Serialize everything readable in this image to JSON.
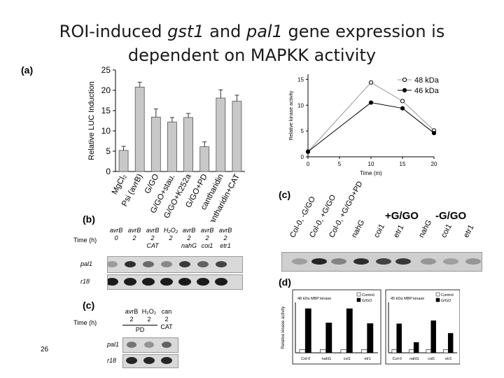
{
  "title": {
    "line1_pre": "ROI-induced ",
    "line1_g1": "gst1",
    "line1_mid": " and ",
    "line1_g2": "pal1",
    "line1_post": " gene expression is",
    "line2": "dependent on MAPKK activity"
  },
  "page_number": "26",
  "panel_labels": {
    "a": "(a)",
    "b": "(b)",
    "c_top": "(c)",
    "c_bottom": "(c)",
    "d": "(d)"
  },
  "chart_data": [
    {
      "type": "bar",
      "ylabel": "Relative LUC Induction",
      "ylim": [
        0,
        25
      ],
      "yticks": [
        0,
        5,
        10,
        15,
        20,
        25
      ],
      "categories": [
        "MgCl2",
        "Psi (avrB)",
        "G/GO",
        "G/GO+stau.",
        "G/GO+K252a",
        "G/GO+PD",
        "cantharidin",
        "cantharidin+CAT"
      ],
      "category_labels": [
        "MgCl₂",
        "Psi (avrB)",
        "G/GO",
        "G/GO+stau.",
        "G/GO+K252a",
        "G/GO+PD",
        "cantharidin",
        "antharidin+CAT"
      ],
      "values": [
        5.2,
        20.8,
        13.4,
        12.2,
        13.3,
        6.1,
        18.1,
        17.3
      ],
      "errors": [
        1.0,
        1.2,
        2.0,
        1.1,
        1.0,
        1.2,
        2.0,
        1.5
      ]
    },
    {
      "type": "line",
      "xlabel": "Time (m)",
      "ylabel": "Relative kinase activity",
      "x": [
        0,
        10,
        15,
        20
      ],
      "xticks": [
        0,
        5,
        10,
        15,
        20
      ],
      "yticks": [
        0,
        5,
        10,
        15
      ],
      "xlim": [
        0,
        20
      ],
      "ylim": [
        0,
        16
      ],
      "legend_position": "top-right",
      "series": [
        {
          "name": "48 kDa",
          "marker": "open",
          "values": [
            1,
            14.4,
            10.8,
            5.1
          ]
        },
        {
          "name": "46 kDa",
          "marker": "filled",
          "values": [
            1,
            10.5,
            9.4,
            4.6
          ]
        }
      ]
    },
    {
      "type": "bar",
      "subtitle": "48 kDa MBP kinase",
      "ylabel": "Relative kinase activity",
      "categories": [
        "Col-0",
        "nahG",
        "col1",
        "etr1"
      ],
      "ylim": [
        0,
        16
      ],
      "series": [
        {
          "name": "Control",
          "values": [
            1,
            1,
            1,
            1
          ]
        },
        {
          "name": "G/GO",
          "values": [
            14,
            9.5,
            14,
            9.3
          ]
        }
      ]
    },
    {
      "type": "bar",
      "subtitle": "45 kDa MBP kinase",
      "categories": [
        "Col-0",
        "nahG",
        "col1",
        "etr1"
      ],
      "ylim": [
        0,
        16
      ],
      "series": [
        {
          "name": "Control",
          "values": [
            1,
            1,
            1,
            1
          ]
        },
        {
          "name": "G/GO",
          "values": [
            9.2,
            3.3,
            10.2,
            6.2
          ]
        }
      ]
    }
  ],
  "blot_b": {
    "headers": [
      {
        "line1": "avrB",
        "line2": "0"
      },
      {
        "line1": "avrB",
        "line2": "2"
      },
      {
        "line1": "avrB",
        "line2": "2",
        "line3": "CAT"
      },
      {
        "line1": "H₂O₂",
        "line2": "2"
      },
      {
        "line1": "avrB",
        "line2": "2",
        "line3": "nahG"
      },
      {
        "line1": "avrB",
        "line2": "2",
        "line3": "coi1"
      },
      {
        "line1": "avrB",
        "line2": "2",
        "line3": "etr1"
      }
    ],
    "time_label": "Time (h)",
    "rows": [
      "pal1",
      "r18"
    ]
  },
  "blot_c_bottom": {
    "headers": [
      {
        "line1": "avrB",
        "line2": "2"
      },
      {
        "line1": "H₂O₂",
        "line2": "2"
      },
      {
        "line1": "can",
        "line2": "2",
        "line3": "CAT"
      }
    ],
    "group_label": "PD",
    "time_label": "Time (h)",
    "rows": [
      "pal1",
      "r18"
    ]
  },
  "blot_c_top": {
    "lane_labels": [
      "Col-0, -G/GO",
      "Col-0, +G/GO",
      "Col-0, +G/GO+PD",
      "nahG",
      "coi1",
      "etr1",
      "nahG",
      "coi1",
      "etr1"
    ],
    "group_plus": "+G/GO",
    "group_minus": "-G/GO"
  }
}
